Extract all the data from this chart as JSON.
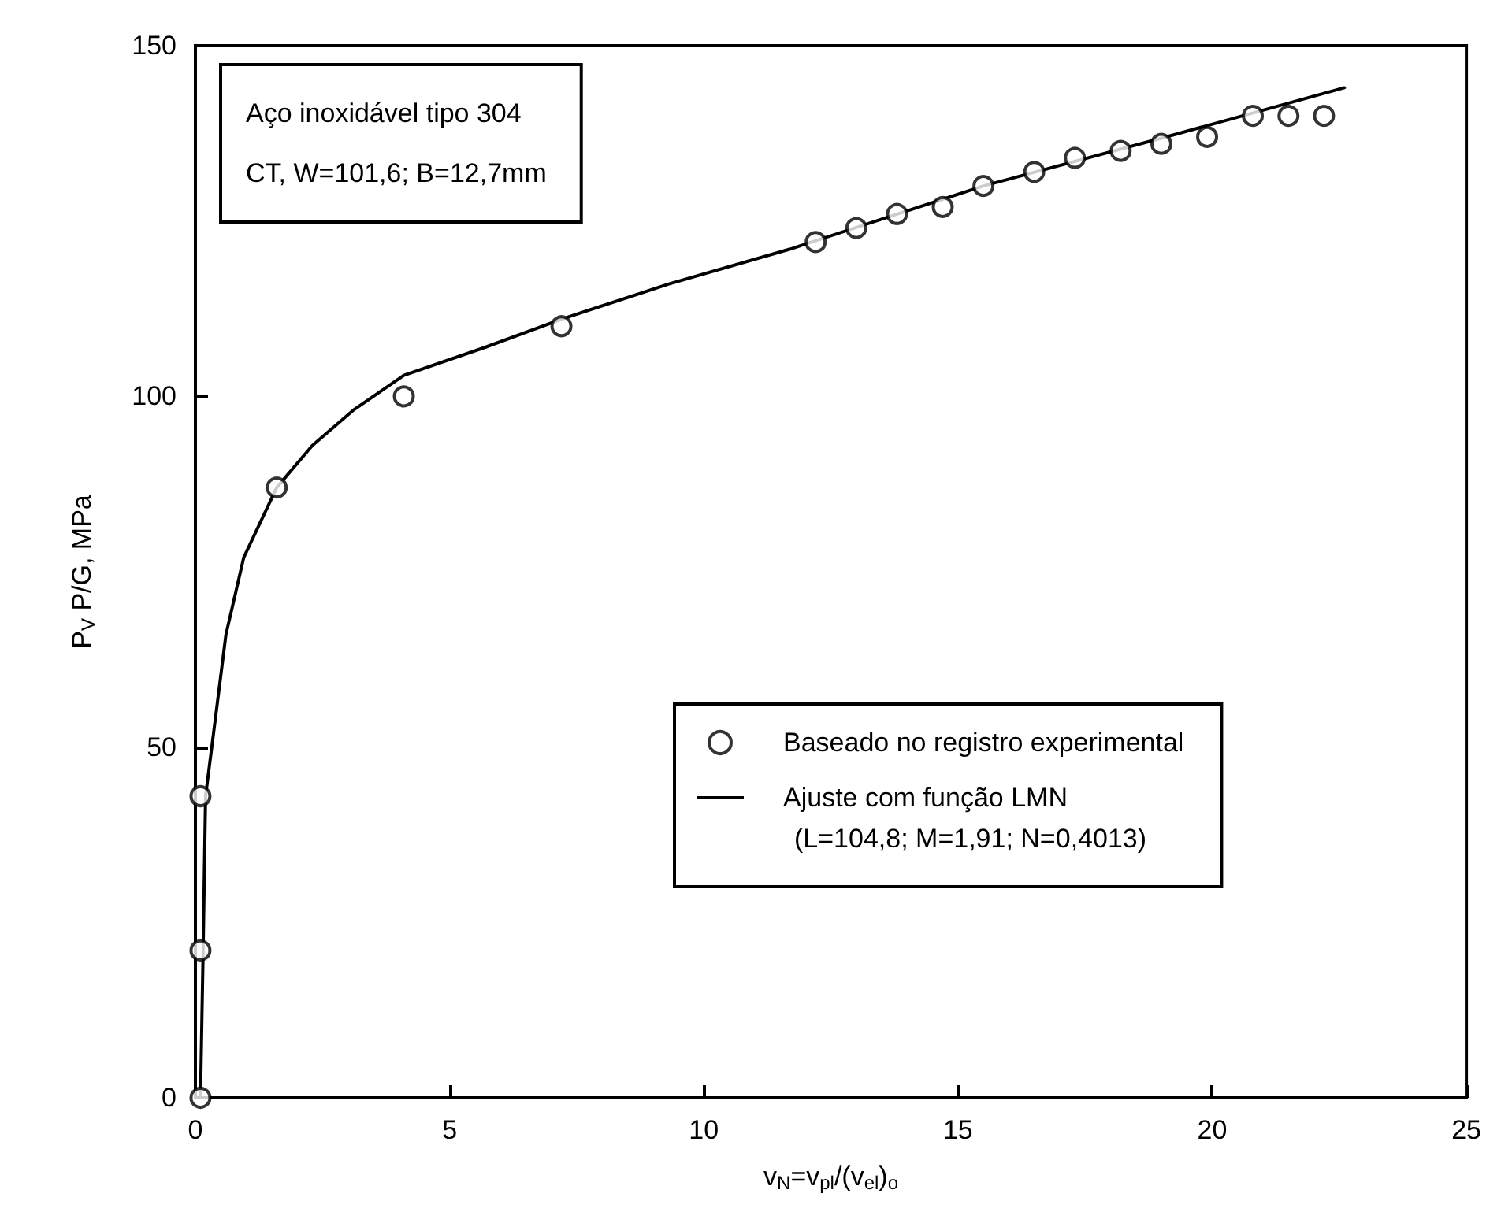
{
  "chart_data": {
    "type": "scatter",
    "xlabel": "v$_{N}$=v$_{pl}$/(v$_{el}$)$_{o}$",
    "ylabel": "P$_{V}$ P/G, MPa",
    "annotations": [
      "Aço inoxidável tipo 304",
      "CT, W=101,6; B=12,7mm",
      "(L=104,8; M=1,91; N=0,4013)"
    ],
    "xlim": [
      0,
      25
    ],
    "xticks": [
      0,
      5,
      10,
      15,
      20,
      25
    ],
    "ylim": [
      0,
      150
    ],
    "yticks": [
      0,
      50,
      100,
      150
    ],
    "grid": false,
    "legend": "right",
    "series": [
      {
        "name": "Baseado no registro experimental",
        "marker": "circle",
        "color": "#000000",
        "x": [
          0.1,
          0.1,
          0.1,
          1.6,
          4.1,
          7.2,
          12.2,
          13.0,
          13.8,
          14.7,
          15.5,
          16.5,
          17.3,
          18.2,
          19.0,
          19.9,
          20.8,
          21.5,
          22.2
        ],
        "values": [
          0,
          21,
          43,
          87,
          100,
          110,
          122,
          124,
          126,
          127,
          130,
          132,
          134,
          135,
          136,
          137,
          140,
          140,
          140
        ]
      },
      {
        "name": "Ajuste com função LMN",
        "type": "line",
        "marker": "none",
        "line_style": "solid",
        "color": "#000000",
        "x": [
          0.1,
          0.15,
          0.2,
          0.34,
          0.6,
          0.95,
          1.6,
          2.3,
          3.1,
          4.1,
          5.7,
          7.2,
          9.3,
          11.7,
          15.5,
          19.1,
          22.6
        ],
        "values": [
          0,
          20,
          43,
          51,
          66,
          77,
          87,
          93,
          98,
          103,
          107,
          111,
          116,
          121,
          130,
          137,
          144
        ]
      }
    ]
  }
}
